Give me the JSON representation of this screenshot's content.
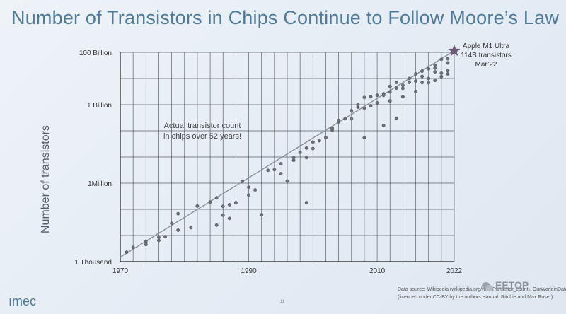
{
  "slide": {
    "title": "Number of Transistors in Chips Continue to Follow Moore’s Law",
    "logo": "ımec",
    "source_line1": "Data source: Wikipedia (wikipedia.org/wiki/Transistor_count), OurWorldinData.org",
    "source_line2": "(licenced under CC-BY by the authors Hannah Ritchie and Max Roser)",
    "watermark": "EETOP",
    "page_number": "11"
  },
  "chart_data": {
    "type": "scatter",
    "title": "",
    "ylabel": "Number of transistors",
    "y_scale": "log",
    "xlim": [
      1970,
      2022
    ],
    "ylim": [
      1000,
      100000000000
    ],
    "y_ticks": [
      {
        "value": 1000,
        "label": "1 Thousand"
      },
      {
        "value": 1000000,
        "label": "1Million"
      },
      {
        "value": 1000000000,
        "label": "1 Billion"
      },
      {
        "value": 100000000000,
        "label": "100 Billion"
      }
    ],
    "x_ticks": [
      {
        "value": 1970,
        "label": "1970"
      },
      {
        "value": 1990,
        "label": "1990"
      },
      {
        "value": 2010,
        "label": "2010"
      },
      {
        "value": 2022,
        "label": "2022"
      }
    ],
    "grid": true,
    "annotation": "Actual transistor count\nin chips over 52 years!",
    "highlight": {
      "x": 2022,
      "y": 114000000000,
      "marker": "star",
      "label_lines": [
        "Apple M1 Ultra",
        "114B transistors",
        "Mar’22"
      ]
    },
    "trend_line": {
      "from": [
        1970,
        1500
      ],
      "to": [
        2022,
        114000000000
      ]
    },
    "points": [
      [
        1971,
        2300
      ],
      [
        1972,
        3500
      ],
      [
        1974,
        4500
      ],
      [
        1974,
        6000
      ],
      [
        1976,
        6500
      ],
      [
        1976,
        8500
      ],
      [
        1977,
        9000
      ],
      [
        1978,
        29000
      ],
      [
        1979,
        68000
      ],
      [
        1982,
        134000
      ],
      [
        1979,
        16000
      ],
      [
        1981,
        20000
      ],
      [
        1984,
        190000
      ],
      [
        1985,
        275000
      ],
      [
        1986,
        130000
      ],
      [
        1987,
        150000
      ],
      [
        1988,
        180000
      ],
      [
        1986,
        60000
      ],
      [
        1985,
        25000
      ],
      [
        1987,
        45000
      ],
      [
        1989,
        1180000
      ],
      [
        1990,
        350000
      ],
      [
        1991,
        550000
      ],
      [
        1990,
        700000
      ],
      [
        1992,
        62000
      ],
      [
        1993,
        3100000
      ],
      [
        1994,
        3300000
      ],
      [
        1995,
        5500000
      ],
      [
        1995,
        2300000
      ],
      [
        1996,
        1200000
      ],
      [
        1997,
        7500000
      ],
      [
        1997,
        9500000
      ],
      [
        1998,
        15000000
      ],
      [
        1999,
        22000000
      ],
      [
        1999,
        9500000
      ],
      [
        2000,
        21000000
      ],
      [
        2000,
        37000000
      ],
      [
        1999,
        180000
      ],
      [
        2001,
        42000000
      ],
      [
        2002,
        55000000
      ],
      [
        2003,
        125000000
      ],
      [
        2003,
        105000000
      ],
      [
        2004,
        220000000
      ],
      [
        2004,
        250000000
      ],
      [
        2005,
        290000000
      ],
      [
        2006,
        291000000
      ],
      [
        2006,
        590000000
      ],
      [
        2007,
        800000000
      ],
      [
        2007,
        1000000000
      ],
      [
        2008,
        731000000
      ],
      [
        2008,
        1900000000
      ],
      [
        2009,
        904000000
      ],
      [
        2008,
        55000000
      ],
      [
        2010,
        1170000000
      ],
      [
        2010,
        2300000000
      ],
      [
        2011,
        2600000000
      ],
      [
        2011,
        2270000000
      ],
      [
        2012,
        1400000000
      ],
      [
        2012,
        3100000000
      ],
      [
        2012,
        5000000000
      ],
      [
        2013,
        4300000000
      ],
      [
        2013,
        7100000000
      ],
      [
        2014,
        4200000000
      ],
      [
        2014,
        5500000000
      ],
      [
        2014,
        2000000000
      ],
      [
        2015,
        7100000000
      ],
      [
        2015,
        10000000000
      ],
      [
        2016,
        3200000000
      ],
      [
        2016,
        8000000000
      ],
      [
        2017,
        19200000000
      ],
      [
        2017,
        7000000000
      ],
      [
        2017,
        12000000000
      ],
      [
        2018,
        23600000000
      ],
      [
        2018,
        6900000000
      ],
      [
        2018,
        10000000000
      ],
      [
        2019,
        32000000000
      ],
      [
        2019,
        8500000000
      ],
      [
        2019,
        18000000000
      ],
      [
        2020,
        54200000000
      ],
      [
        2020,
        11800000000
      ],
      [
        2020,
        16000000000
      ],
      [
        2021,
        39500000000
      ],
      [
        2021,
        57000000000
      ],
      [
        2021,
        20000000000
      ],
      [
        2011,
        160000000
      ],
      [
        2013,
        300000000
      ],
      [
        2009,
        2000000000
      ],
      [
        2016,
        15000000000
      ],
      [
        2019,
        25000000000
      ],
      [
        2021,
        15000000000
      ]
    ]
  }
}
